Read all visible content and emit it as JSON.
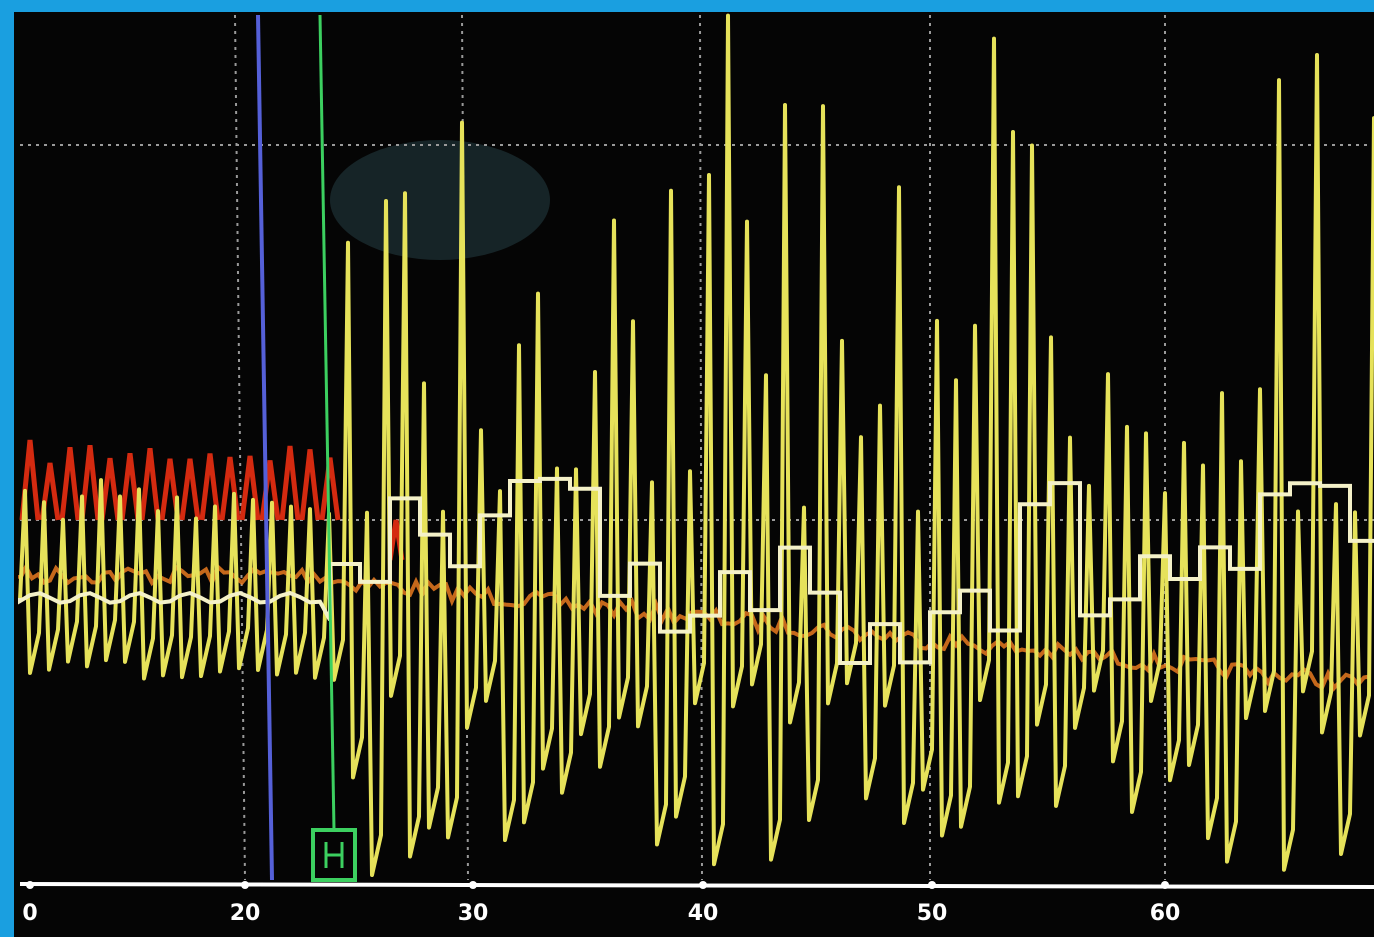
{
  "axis": {
    "labels": [
      "0",
      "20",
      "30",
      "40",
      "50",
      "60"
    ]
  }
}
